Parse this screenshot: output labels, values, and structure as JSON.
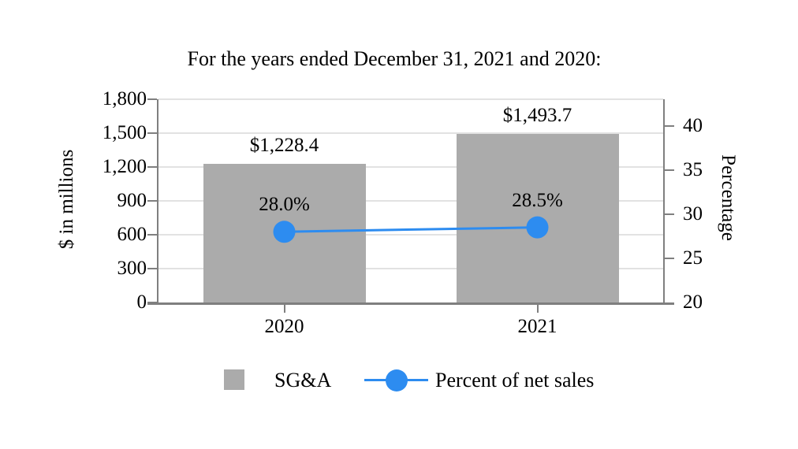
{
  "title": "For the years ended December 31, 2021 and 2020:",
  "colors": {
    "background": "#ffffff",
    "bar": "#ababab",
    "line": "#2d8cf0",
    "axis": "#7f7f7f",
    "gridline": "#e2e2e2",
    "text": "#000000"
  },
  "chart_data": {
    "type": "combo-bar-line",
    "categories": [
      "2020",
      "2021"
    ],
    "series": [
      {
        "name": "SG&A",
        "type": "bar",
        "axis": "left",
        "values": [
          1228.4,
          1493.7
        ],
        "value_labels": [
          "$1,228.4",
          "$1,493.7"
        ],
        "color": "#ababab"
      },
      {
        "name": "Percent of net sales",
        "type": "line",
        "axis": "right",
        "values": [
          28.0,
          28.5
        ],
        "value_labels": [
          "28.0%",
          "28.5%"
        ],
        "color": "#2d8cf0"
      }
    ],
    "left_axis": {
      "title": "$ in millions",
      "min": 0,
      "max": 1800,
      "ticks": [
        0,
        300,
        600,
        900,
        1200,
        1500,
        1800
      ],
      "tick_labels": [
        "0",
        "300",
        "600",
        "900",
        "1,200",
        "1,500",
        "1,800"
      ]
    },
    "right_axis": {
      "title": "Percentage",
      "min": 20,
      "max": 43,
      "ticks": [
        20,
        25,
        30,
        35,
        40
      ],
      "tick_labels": [
        "20",
        "25",
        "30",
        "35",
        "40"
      ]
    },
    "grid": true,
    "legend": {
      "position": "bottom",
      "items": [
        {
          "label": "SG&A",
          "swatch": "square",
          "color": "#ababab"
        },
        {
          "label": "Percent of net sales",
          "swatch": "line-dot",
          "color": "#2d8cf0"
        }
      ]
    }
  }
}
